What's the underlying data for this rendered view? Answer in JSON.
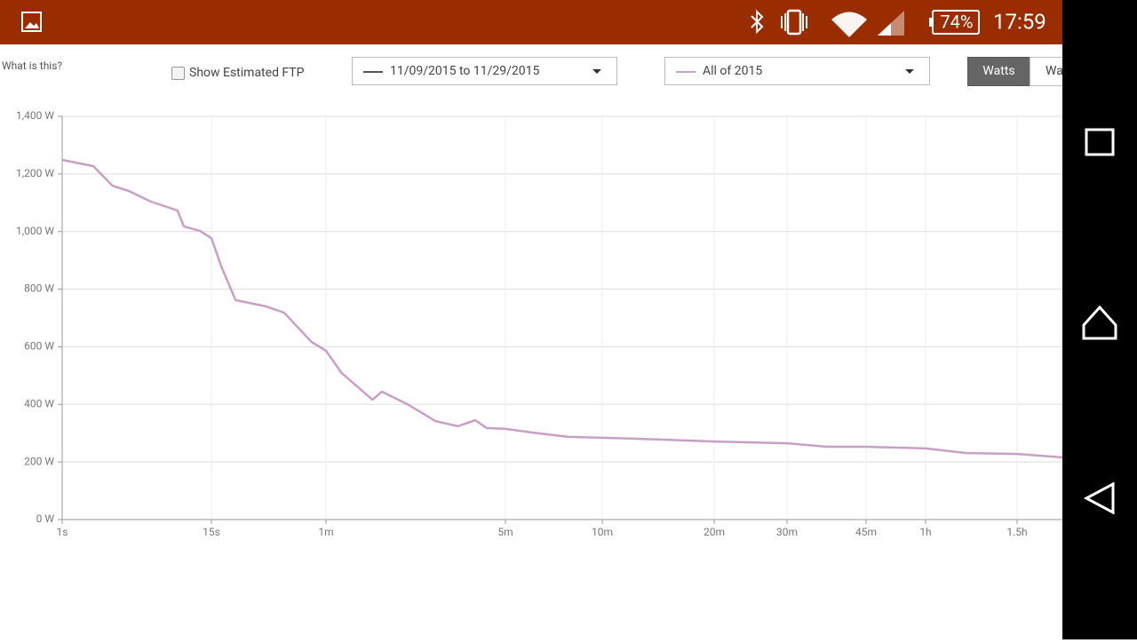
{
  "status_bar": {
    "battery": "74%",
    "time": "17:59"
  },
  "controls": {
    "help": "What is this?",
    "ftp_checkbox": "Show Estimated FTP",
    "date_range": {
      "label": "11/09/2015 to 11/29/2015",
      "color": "#555555"
    },
    "units": [
      "Watts",
      "Wa"
    ]
  },
  "chart_data": {
    "type": "line",
    "x": [
      1,
      1.76,
      2.5,
      3.35,
      5.0,
      8.1,
      9.1,
      12.2,
      15,
      16.9,
      20.1,
      29.0,
      36.2,
      50.3,
      60,
      69,
      91,
      99,
      126,
      160,
      196,
      229,
      253,
      300,
      365,
      471,
      600,
      844,
      1200,
      1800,
      2204,
      2700,
      3600,
      4310,
      5400,
      6600
    ],
    "series": [
      {
        "name": "All of 2015",
        "color": "#c9a0c4",
        "values": [
          1249,
          1227,
          1159,
          1141,
          1104,
          1073,
          1018,
          1002,
          977,
          879,
          762,
          740,
          718,
          617,
          586,
          509,
          416,
          444,
          398,
          342,
          324,
          345,
          318,
          315,
          302,
          287,
          284,
          278,
          271,
          265,
          253,
          253,
          247,
          231,
          228,
          216
        ]
      }
    ],
    "xlim": [
      1,
      6600
    ],
    "xticks": [
      {
        "value": 1,
        "label": "1s"
      },
      {
        "value": 15,
        "label": "15s"
      },
      {
        "value": 60,
        "label": "1m"
      },
      {
        "value": 300,
        "label": "5m"
      },
      {
        "value": 600,
        "label": "10m"
      },
      {
        "value": 1200,
        "label": "20m"
      },
      {
        "value": 1800,
        "label": "30m"
      },
      {
        "value": 2700,
        "label": "45m"
      },
      {
        "value": 3600,
        "label": "1h"
      },
      {
        "value": 5400,
        "label": "1.5h"
      }
    ],
    "ylim": [
      0,
      1400
    ],
    "yticks": [
      {
        "value": 0,
        "label": "0 W"
      },
      {
        "value": 200,
        "label": "200 W"
      },
      {
        "value": 400,
        "label": "400 W"
      },
      {
        "value": 600,
        "label": "600 W"
      },
      {
        "value": 800,
        "label": "800 W"
      },
      {
        "value": 1000,
        "label": "1,000 W"
      },
      {
        "value": 1200,
        "label": "1,200 W"
      },
      {
        "value": 1400,
        "label": "1,400 W"
      }
    ],
    "grid": true
  }
}
